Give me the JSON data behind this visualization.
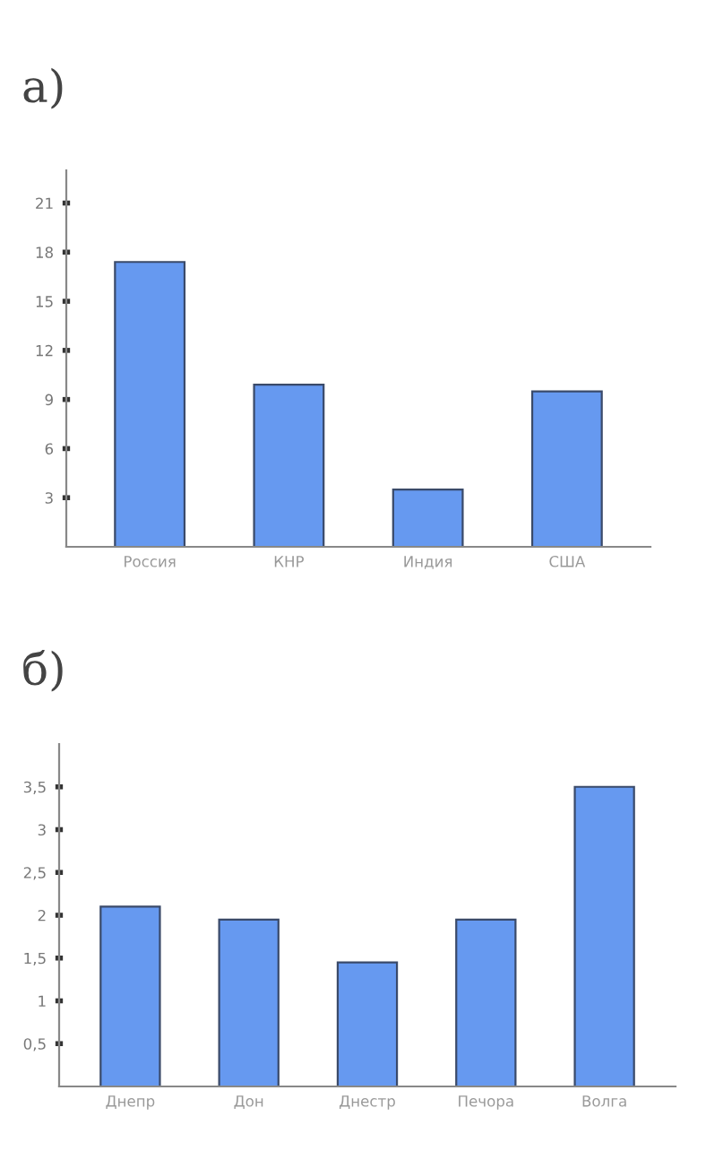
{
  "chart_data": [
    {
      "type": "bar",
      "title": "а)",
      "categories": [
        "Россия",
        "КНР",
        "Индия",
        "США"
      ],
      "values": [
        17.4,
        9.9,
        3.5,
        9.5
      ],
      "color": "#6699f0",
      "ylim": [
        0,
        23
      ],
      "yticks": [
        3,
        6,
        9,
        12,
        15,
        18,
        21
      ],
      "grid": false
    },
    {
      "type": "bar",
      "title": "б)",
      "categories": [
        "Днепр",
        "Дон",
        "Днестр",
        "Печора",
        "Волга"
      ],
      "values": [
        2.1,
        1.95,
        1.45,
        1.95,
        3.5
      ],
      "color": "#6699f0",
      "ylim": [
        0,
        4
      ],
      "yticks": [
        {
          "value": 0.5,
          "label": "0,5"
        },
        1,
        {
          "value": 1.5,
          "label": "1,5"
        },
        2,
        {
          "value": 2.5,
          "label": "2,5"
        },
        3,
        {
          "value": 3.5,
          "label": "3,5"
        }
      ],
      "grid": false
    }
  ]
}
